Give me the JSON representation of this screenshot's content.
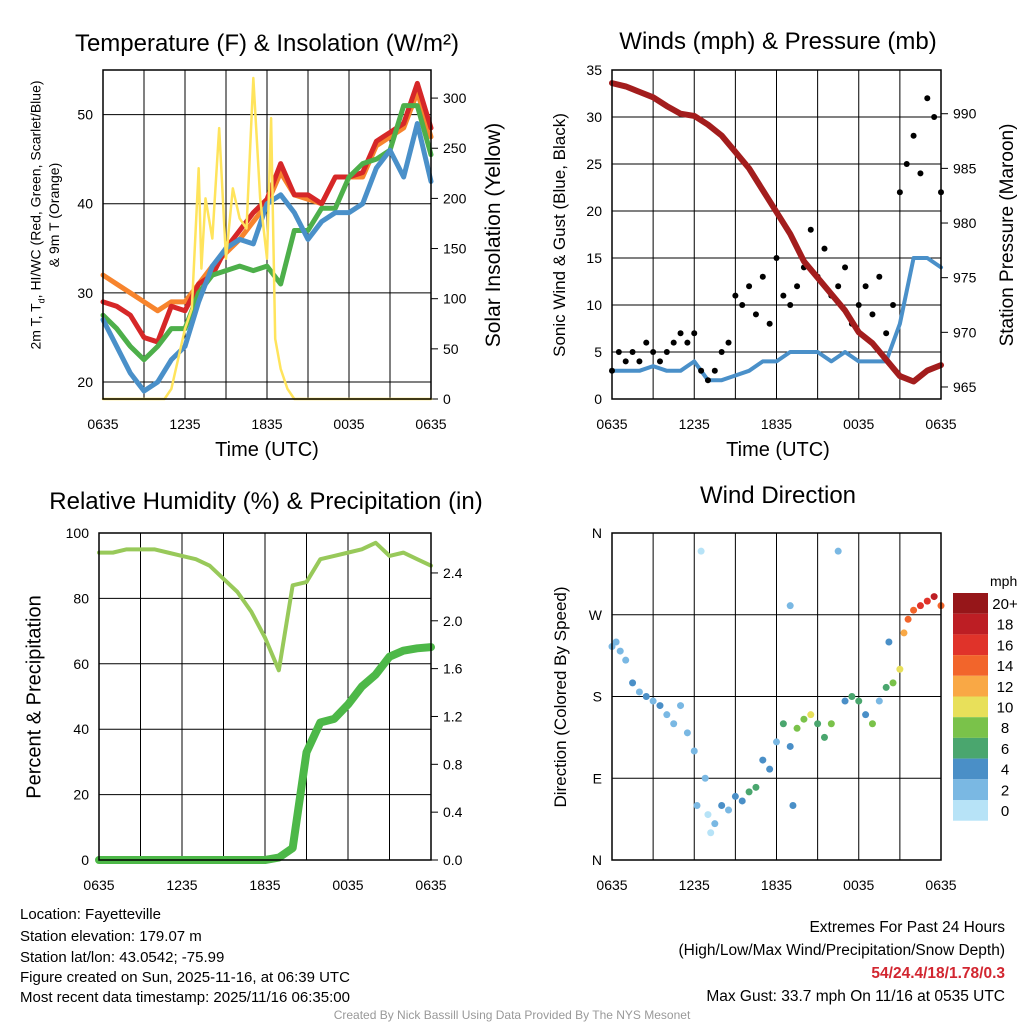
{
  "colors": {
    "red": "#d62728",
    "orange": "#f7842d",
    "green": "#4daf4a",
    "blue": "#4a90c9",
    "yellow": "#ffe45c",
    "maroon": "#a31d1d",
    "rh": "#98c95a",
    "precip": "#4db848",
    "extremes": "#d22630"
  },
  "chart_data": [
    {
      "type": "line",
      "title": "Temperature (F) & Insolation (W/m²)",
      "ylabel_parts": [
        "2m T, T",
        "d",
        ", HI/WC (Red, Green, Scarlet/Blue)"
      ],
      "ylabel2": "& 9m T (Orange)",
      "y2label": "Solar Insolation (Yellow)",
      "xlabel": "Time (UTC)",
      "xticks": {
        "values": [
          0,
          6,
          12,
          18,
          24
        ],
        "labels": [
          "0635",
          "1235",
          "1835",
          "0035",
          "0635"
        ]
      },
      "ylim": [
        18.1,
        55
      ],
      "y2lim": [
        0,
        328
      ],
      "yticks": {
        "values": [
          20,
          30,
          40,
          50
        ],
        "labels": [
          "20",
          "30",
          "40",
          "50"
        ]
      },
      "y2ticks": {
        "values": [
          0,
          50,
          100,
          150,
          200,
          250,
          300
        ],
        "labels": [
          "0",
          "50",
          "100",
          "150",
          "200",
          "250",
          "300"
        ]
      },
      "x": [
        0,
        1,
        2,
        3,
        4,
        5,
        6,
        7,
        8,
        9,
        10,
        11,
        12,
        13,
        14,
        15,
        16,
        17,
        18,
        19,
        20,
        21,
        22,
        23,
        24
      ],
      "series": [
        {
          "name": "9m T",
          "color_key": "orange",
          "values": [
            32,
            31,
            30,
            29,
            28,
            29,
            29,
            31,
            33,
            34.5,
            36,
            38,
            40,
            43.5,
            41,
            40.5,
            40,
            43,
            43,
            43,
            46.5,
            47.5,
            48.5,
            52.5,
            47.5
          ]
        },
        {
          "name": "2m T",
          "color_key": "red",
          "values": [
            29,
            28.5,
            27.5,
            25,
            24.5,
            28.5,
            28,
            31,
            32,
            35,
            37,
            39,
            40.5,
            44.5,
            41,
            41,
            40,
            43,
            43,
            43.5,
            47,
            48,
            49,
            53.5,
            48.5
          ]
        },
        {
          "name": "Dewpoint",
          "color_key": "green",
          "values": [
            27.5,
            26,
            24,
            22.5,
            24,
            26,
            26,
            30,
            32,
            32.5,
            33,
            32.5,
            33,
            31,
            37,
            37,
            39.5,
            39.5,
            43,
            44.5,
            45,
            46,
            51,
            51,
            45.5
          ]
        },
        {
          "name": "HI/WC",
          "color_key": "blue",
          "values": [
            27,
            24,
            21,
            19,
            20,
            22.5,
            24,
            29,
            33,
            35,
            36,
            35.5,
            40,
            41,
            39,
            36,
            38,
            39,
            39,
            40,
            44,
            46,
            43,
            49,
            42.5
          ]
        }
      ],
      "solar": {
        "x": [
          0,
          4.5,
          5,
          5.5,
          6,
          6.5,
          7,
          7.2,
          7.5,
          8,
          8.5,
          9,
          9.5,
          10,
          10.5,
          11,
          11.5,
          12,
          12.3,
          12.6,
          13,
          13.5,
          14,
          14.5,
          15,
          24
        ],
        "values": [
          0,
          0,
          10,
          40,
          70,
          90,
          230,
          130,
          200,
          160,
          270,
          140,
          210,
          180,
          170,
          320,
          200,
          140,
          280,
          60,
          30,
          10,
          0,
          0,
          0,
          0
        ]
      }
    },
    {
      "type": "line",
      "title": "Winds (mph) & Pressure (mb)",
      "ylabel": "Sonic Wind & Gust (Blue, Black)",
      "y2label": "Station Pressure (Maroon)",
      "xlabel": "Time (UTC)",
      "xticks": {
        "values": [
          0,
          6,
          12,
          18,
          24
        ],
        "labels": [
          "0635",
          "1235",
          "1835",
          "0035",
          "0635"
        ]
      },
      "ylim": [
        0,
        35
      ],
      "y2lim": [
        963.9,
        994
      ],
      "yticks": {
        "values": [
          0,
          5,
          10,
          15,
          20,
          25,
          30,
          35
        ],
        "labels": [
          "0",
          "5",
          "10",
          "15",
          "20",
          "25",
          "30",
          "35"
        ]
      },
      "y2ticks": {
        "values": [
          965,
          970,
          975,
          980,
          985,
          990
        ],
        "labels": [
          "965",
          "970",
          "975",
          "980",
          "985",
          "990"
        ]
      },
      "x": [
        0,
        1,
        2,
        3,
        4,
        5,
        6,
        7,
        8,
        9,
        10,
        11,
        12,
        13,
        14,
        15,
        16,
        17,
        18,
        19,
        20,
        21,
        22,
        23,
        24
      ],
      "wind": [
        3,
        3,
        3,
        3.5,
        3,
        3,
        4,
        2,
        2,
        2.5,
        3,
        4,
        4,
        5,
        5,
        5,
        4,
        5,
        4,
        4,
        4,
        8,
        15,
        15,
        14
      ],
      "pressure": [
        992.8,
        992.5,
        992,
        991.5,
        990.7,
        990,
        989.8,
        989,
        988,
        986.5,
        985,
        983,
        981,
        979,
        976.5,
        975,
        973.5,
        972,
        970,
        969,
        967.5,
        966,
        965.5,
        966.5,
        967
      ],
      "gusts": [
        [
          0,
          3
        ],
        [
          0.5,
          5
        ],
        [
          1,
          4
        ],
        [
          1.5,
          5
        ],
        [
          2,
          4
        ],
        [
          2.5,
          6
        ],
        [
          3,
          5
        ],
        [
          3.5,
          4
        ],
        [
          4,
          5
        ],
        [
          4.5,
          6
        ],
        [
          5,
          7
        ],
        [
          5.5,
          6
        ],
        [
          6,
          7
        ],
        [
          6.5,
          3
        ],
        [
          7,
          2
        ],
        [
          7.5,
          3
        ],
        [
          8,
          5
        ],
        [
          8.5,
          6
        ],
        [
          9,
          11
        ],
        [
          9.5,
          10
        ],
        [
          10,
          12
        ],
        [
          10.5,
          9
        ],
        [
          11,
          13
        ],
        [
          11.5,
          8
        ],
        [
          12,
          15
        ],
        [
          12.5,
          11
        ],
        [
          13,
          10
        ],
        [
          13.5,
          12
        ],
        [
          14,
          14
        ],
        [
          14.5,
          18
        ],
        [
          15,
          13
        ],
        [
          15.5,
          16
        ],
        [
          16,
          11
        ],
        [
          16.5,
          12
        ],
        [
          17,
          14
        ],
        [
          17.5,
          8
        ],
        [
          18,
          10
        ],
        [
          18.5,
          12
        ],
        [
          19,
          9
        ],
        [
          19.5,
          13
        ],
        [
          20,
          7
        ],
        [
          20.5,
          10
        ],
        [
          21,
          22
        ],
        [
          21.5,
          25
        ],
        [
          22,
          28
        ],
        [
          22.5,
          24
        ],
        [
          23,
          32
        ],
        [
          23.5,
          30
        ],
        [
          24,
          22
        ]
      ]
    },
    {
      "type": "line",
      "title": "Relative Humidity (%) & Precipitation (in)",
      "ylabel": "Percent & Precipitation",
      "xticks": {
        "values": [
          0,
          6,
          12,
          18,
          24
        ],
        "labels": [
          "0635",
          "1235",
          "1835",
          "0035",
          "0635"
        ]
      },
      "ylim": [
        0,
        100
      ],
      "y2lim": [
        0,
        2.734
      ],
      "yticks": {
        "values": [
          0,
          20,
          40,
          60,
          80,
          100
        ],
        "labels": [
          "0",
          "20",
          "40",
          "60",
          "80",
          "100"
        ]
      },
      "y2ticks": {
        "values": [
          0,
          0.4,
          0.8,
          1.2,
          1.6,
          2.0,
          2.4
        ],
        "labels": [
          "0.0",
          "0.4",
          "0.8",
          "1.2",
          "1.6",
          "2.0",
          "2.4"
        ]
      },
      "x": [
        0,
        1,
        2,
        3,
        4,
        5,
        6,
        7,
        8,
        9,
        10,
        11,
        12,
        13,
        14,
        15,
        16,
        17,
        18,
        19,
        20,
        21,
        22,
        23,
        24
      ],
      "rh": [
        94,
        94,
        95,
        95,
        95,
        94,
        93,
        92,
        90,
        86,
        82,
        76,
        68,
        58,
        84,
        85,
        92,
        93,
        94,
        95,
        97,
        93,
        94,
        92,
        90
      ],
      "precip": [
        0,
        0,
        0,
        0,
        0,
        0,
        0,
        0,
        0,
        0,
        0,
        0,
        0,
        0.02,
        0.1,
        0.9,
        1.15,
        1.18,
        1.3,
        1.45,
        1.55,
        1.7,
        1.75,
        1.77,
        1.78
      ]
    },
    {
      "type": "scatter",
      "title": "Wind Direction",
      "ylabel": "Direction (Colored By Speed)",
      "xticks": {
        "values": [
          0,
          6,
          12,
          18,
          24
        ],
        "labels": [
          "0635",
          "1235",
          "1835",
          "0035",
          "0635"
        ]
      },
      "ylim": [
        0,
        360
      ],
      "yticks": {
        "values": [
          0,
          90,
          180,
          270,
          360
        ],
        "labels": [
          "N",
          "E",
          "S",
          "W",
          "N"
        ]
      },
      "colorbar": {
        "title": "mph",
        "labels": [
          "20+",
          "18",
          "16",
          "14",
          "12",
          "10",
          "8",
          "6",
          "4",
          "2",
          "0"
        ],
        "colors": [
          "#961619",
          "#bd1e24",
          "#e0332a",
          "#f2652b",
          "#f9a845",
          "#e8e05a",
          "#7ac24a",
          "#4aa66e",
          "#4a8fc7",
          "#7ab8e3",
          "#b7e3f7"
        ]
      },
      "points": [
        [
          0,
          235,
          3
        ],
        [
          0.3,
          240,
          3
        ],
        [
          0.6,
          230,
          2
        ],
        [
          1,
          220,
          3
        ],
        [
          1.5,
          195,
          4
        ],
        [
          2,
          185,
          3
        ],
        [
          2.5,
          180,
          4
        ],
        [
          3,
          175,
          3
        ],
        [
          3.5,
          170,
          4
        ],
        [
          4,
          160,
          3
        ],
        [
          4.5,
          150,
          2
        ],
        [
          5,
          170,
          3
        ],
        [
          5.5,
          140,
          2
        ],
        [
          6,
          120,
          3
        ],
        [
          6.2,
          60,
          2
        ],
        [
          6.5,
          340,
          1
        ],
        [
          6.8,
          90,
          2
        ],
        [
          7,
          50,
          1
        ],
        [
          7.2,
          30,
          1
        ],
        [
          7.5,
          40,
          2
        ],
        [
          8,
          60,
          4
        ],
        [
          8.5,
          55,
          3
        ],
        [
          9,
          70,
          4
        ],
        [
          9.5,
          65,
          5
        ],
        [
          10,
          75,
          7
        ],
        [
          10.5,
          80,
          6
        ],
        [
          11,
          110,
          4
        ],
        [
          11.5,
          100,
          5
        ],
        [
          12,
          130,
          3
        ],
        [
          12.5,
          150,
          6
        ],
        [
          13,
          125,
          4
        ],
        [
          13,
          280,
          3
        ],
        [
          13.2,
          60,
          4
        ],
        [
          13.5,
          145,
          8
        ],
        [
          14,
          155,
          8
        ],
        [
          14.5,
          160,
          10
        ],
        [
          15,
          150,
          7
        ],
        [
          15.5,
          135,
          6
        ],
        [
          16,
          150,
          8
        ],
        [
          16.5,
          340,
          2
        ],
        [
          17,
          175,
          5
        ],
        [
          17.5,
          180,
          7
        ],
        [
          18,
          175,
          6
        ],
        [
          18.5,
          160,
          4
        ],
        [
          19,
          150,
          9
        ],
        [
          19.5,
          175,
          3
        ],
        [
          20,
          190,
          6
        ],
        [
          20.2,
          240,
          4
        ],
        [
          20.5,
          195,
          9
        ],
        [
          21,
          210,
          10
        ],
        [
          21.3,
          250,
          12
        ],
        [
          21.6,
          265,
          14
        ],
        [
          22,
          275,
          15
        ],
        [
          22.5,
          280,
          16
        ],
        [
          23,
          285,
          17
        ],
        [
          23.5,
          290,
          18
        ],
        [
          24,
          280,
          14
        ]
      ]
    }
  ],
  "footer": {
    "location": "Location: Fayetteville",
    "elevation": "Station elevation: 179.07 m",
    "latlon": "Station lat/lon: 43.0542; -75.99",
    "created": "Figure created on Sun, 2025-11-16, at 06:39 UTC",
    "recent": "Most recent data timestamp: 2025/11/16 06:35:00",
    "extremes_title": "Extremes For Past 24 Hours",
    "extremes_legend": "(High/Low/Max Wind/Precipitation/Snow Depth)",
    "extremes_values": "54/24.4/18/1.78/0.3",
    "max_gust": "Max Gust: 33.7 mph On 11/16 at 0535 UTC",
    "credit": "Created By Nick Bassill Using Data Provided By The NYS Mesonet"
  }
}
